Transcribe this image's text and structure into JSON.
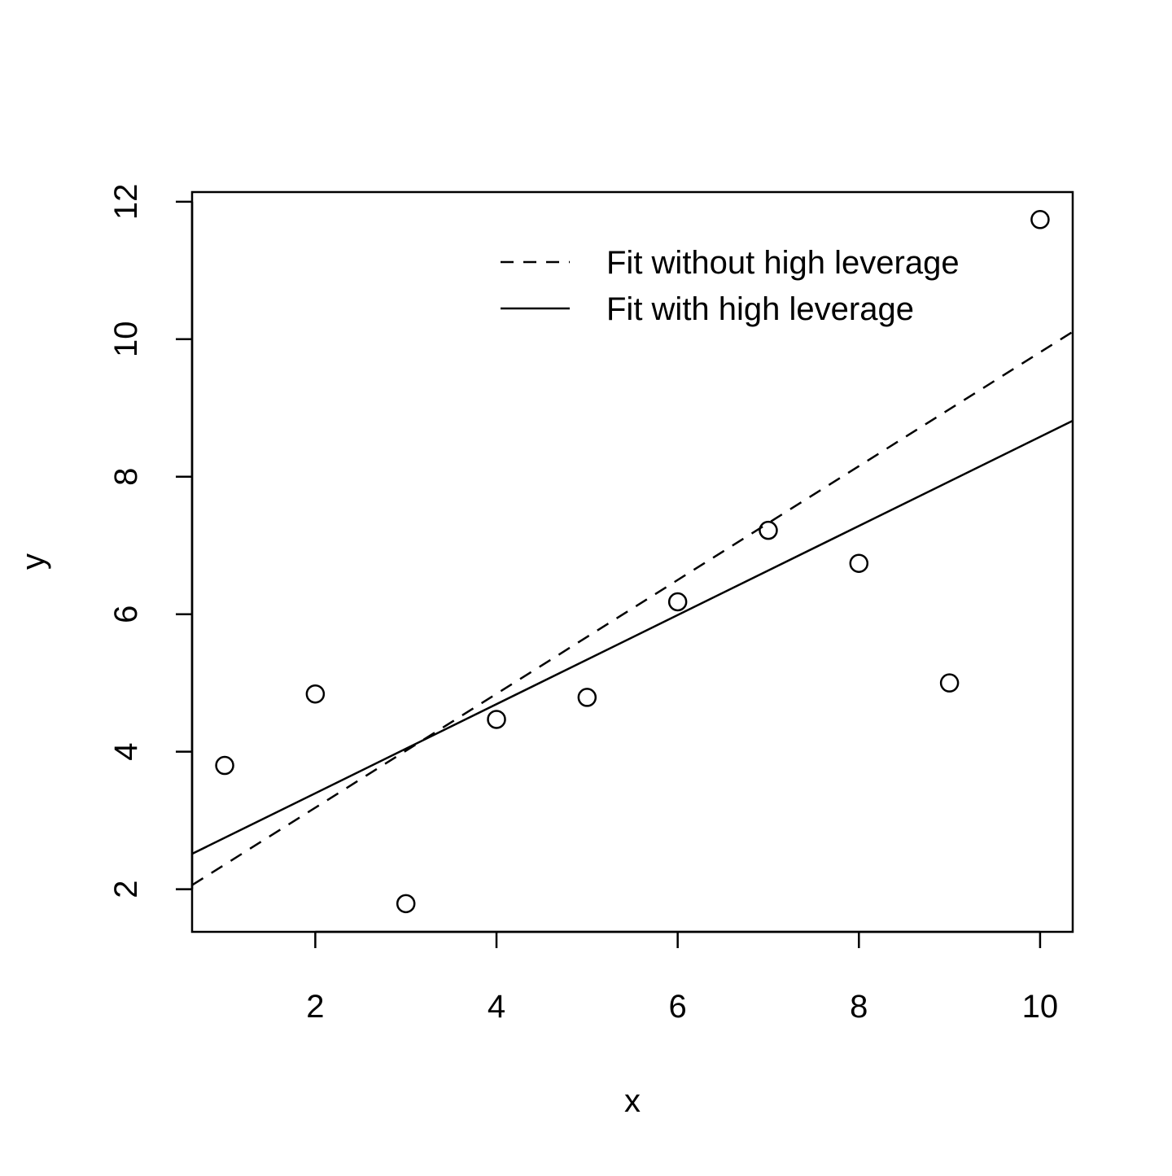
{
  "chart_data": {
    "type": "scatter",
    "x": [
      1,
      2,
      3,
      4,
      5,
      6,
      7,
      8,
      9,
      10
    ],
    "values": [
      3.8,
      4.84,
      1.79,
      4.47,
      4.79,
      6.18,
      7.22,
      6.74,
      5.0,
      11.74
    ],
    "color": "#000000",
    "x_label": "x",
    "y_label": "y",
    "xlim": [
      0.64,
      10.36
    ],
    "ylim": [
      1.38,
      12.14
    ],
    "xticks": [
      2,
      4,
      6,
      8,
      10
    ],
    "yticks": [
      2,
      4,
      6,
      8,
      10,
      12
    ],
    "fit_lines": [
      {
        "name": "Fit without high leverage",
        "intercept": 1.53,
        "slope": 0.828,
        "linestyle": "dashed",
        "color": "#000000"
      },
      {
        "name": "Fit with high leverage",
        "intercept": 2.1,
        "slope": 0.648,
        "linestyle": "solid",
        "color": "#000000"
      }
    ],
    "legend": "top-right"
  }
}
